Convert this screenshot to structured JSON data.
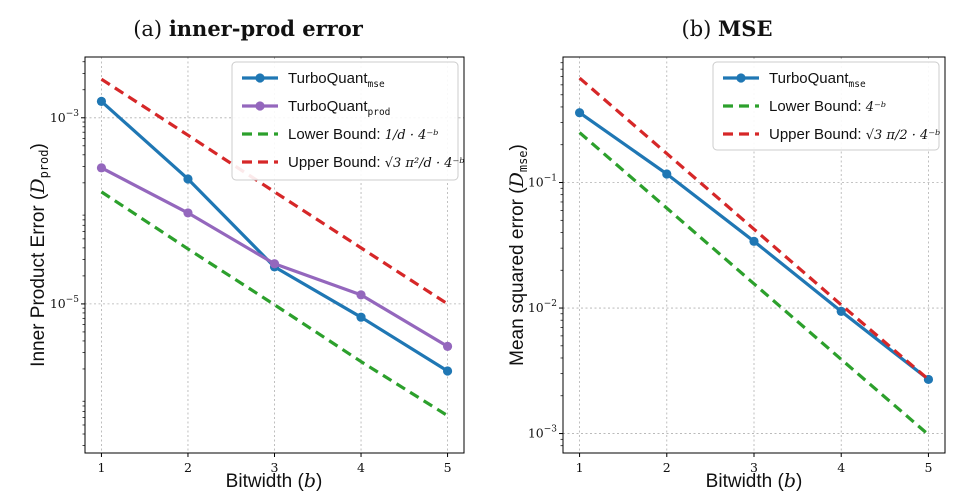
{
  "chart_data": [
    {
      "type": "line",
      "title_prefix": "(a)",
      "title": "inner-prod error",
      "xlabel": "Bitwidth (",
      "xlabel_var": "b",
      "xlabel_suffix": ")",
      "ylabel": "Inner Product Error (",
      "ylabel_var": "D",
      "ylabel_sub": "prod",
      "ylabel_suffix": ")",
      "yscale": "log",
      "x": [
        1,
        2,
        3,
        4,
        5
      ],
      "xticks": [
        "1",
        "2",
        "3",
        "4",
        "5"
      ],
      "xlim": [
        0.81,
        5.19
      ],
      "ylim": [
        2.5e-07,
        0.0045
      ],
      "yticks": [
        {
          "value": 0.001,
          "base": "10",
          "exp": "−3"
        },
        {
          "value": 1e-05,
          "base": "10",
          "exp": "−5"
        }
      ],
      "grid": true,
      "legend_position": "top-right",
      "series": [
        {
          "name": "TurboQuant",
          "sub": "mse",
          "color": "#1f77b4",
          "style": "solid",
          "marker": true,
          "values": [
            0.0015,
            0.00022,
            2.5e-05,
            7.2e-06,
            1.9e-06
          ]
        },
        {
          "name": "TurboQuant",
          "sub": "prod",
          "color": "#9467bd",
          "style": "solid",
          "marker": true,
          "values": [
            0.00029,
            9.5e-05,
            2.7e-05,
            1.25e-05,
            3.5e-06
          ]
        },
        {
          "name": "Lower Bound: ",
          "formula": "1/d · 4⁻ᵇ",
          "color": "#2ca02c",
          "style": "dashed",
          "marker": false,
          "values": [
            0.00016,
            3.9e-05,
            9.8e-06,
            2.4e-06,
            6.3e-07
          ]
        },
        {
          "name": "Upper Bound: ",
          "formula": "√3 π²/d · 4⁻ᵇ",
          "color": "#d62728",
          "style": "dashed",
          "marker": false,
          "values": [
            0.0026,
            0.00065,
            0.00016,
            4e-05,
            1e-05
          ]
        }
      ]
    },
    {
      "type": "line",
      "title_prefix": "(b)",
      "title": "MSE",
      "xlabel": "Bitwidth (",
      "xlabel_var": "b",
      "xlabel_suffix": ")",
      "ylabel": "Mean squared error (",
      "ylabel_var": "D",
      "ylabel_sub": "mse",
      "ylabel_suffix": ")",
      "yscale": "log",
      "x": [
        1,
        2,
        3,
        4,
        5
      ],
      "xticks": [
        "1",
        "2",
        "3",
        "4",
        "5"
      ],
      "xlim": [
        0.81,
        5.19
      ],
      "ylim": [
        0.0007,
        1.0
      ],
      "yticks": [
        {
          "value": 0.1,
          "base": "10",
          "exp": "−1"
        },
        {
          "value": 0.01,
          "base": "10",
          "exp": "−2"
        },
        {
          "value": 0.001,
          "base": "10",
          "exp": "−3"
        }
      ],
      "grid": true,
      "legend_position": "top-right",
      "series": [
        {
          "name": "TurboQuant",
          "sub": "mse",
          "color": "#1f77b4",
          "style": "solid",
          "marker": true,
          "values": [
            0.36,
            0.117,
            0.034,
            0.0094,
            0.0027
          ]
        },
        {
          "name": "Lower Bound: ",
          "formula": "4⁻ᵇ",
          "color": "#2ca02c",
          "style": "dashed",
          "marker": false,
          "values": [
            0.25,
            0.0625,
            0.0156,
            0.0039,
            0.00098
          ]
        },
        {
          "name": "Upper Bound: ",
          "formula": "√3 π/2 · 4⁻ᵇ",
          "color": "#d62728",
          "style": "dashed",
          "marker": false,
          "values": [
            0.68,
            0.17,
            0.0425,
            0.0106,
            0.0027
          ]
        }
      ]
    }
  ]
}
